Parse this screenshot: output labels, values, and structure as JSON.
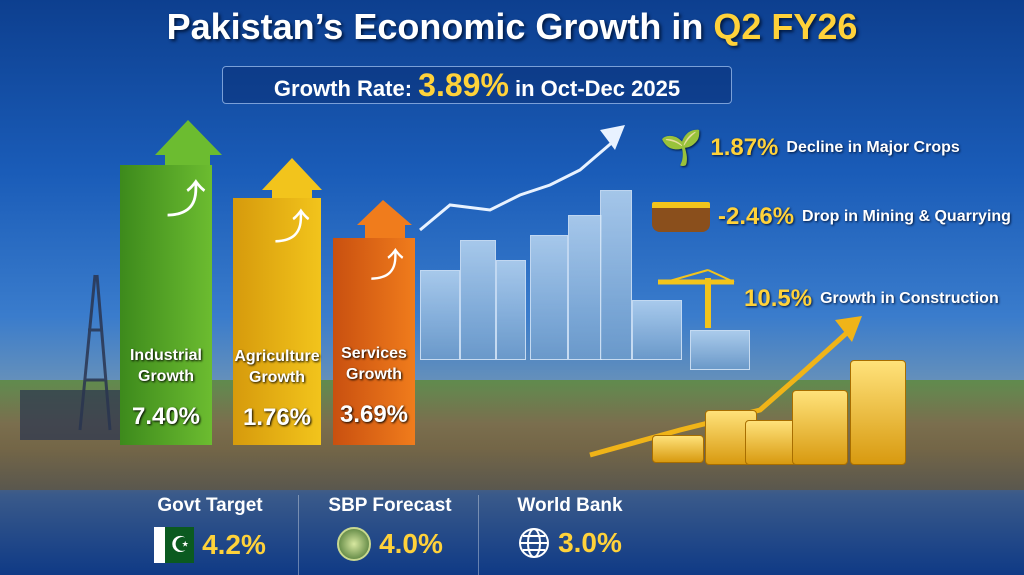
{
  "title": {
    "prefix": "Pakistan’s Economic Growth in ",
    "highlight": "Q2 FY26"
  },
  "subtitle": {
    "prefix": "Growth Rate: ",
    "value": "3.89%",
    "suffix": " in Oct-Dec 2025"
  },
  "sectors": [
    {
      "label_line1": "Industrial",
      "label_line2": "Growth",
      "value": "7.40%",
      "color": "#5aa22a"
    },
    {
      "label_line1": "Agriculture",
      "label_line2": "Growth",
      "value": "1.76%",
      "color": "#e8b414"
    },
    {
      "label_line1": "Services",
      "label_line2": "Growth",
      "value": "3.69%",
      "color": "#e0701a"
    }
  ],
  "highlights": [
    {
      "icon": "wheat-plant-icon",
      "value": "1.87%",
      "text": "Decline in Major Crops"
    },
    {
      "icon": "mining-cart-icon",
      "value": "-2.46%",
      "text": "Drop in Mining & Quarrying"
    },
    {
      "icon": "crane-icon",
      "value": "10.5%",
      "text": "Growth in Construction"
    }
  ],
  "forecasts": [
    {
      "label": "Govt Target",
      "value": "4.2%",
      "icon": "pakistan-flag-icon"
    },
    {
      "label": "SBP Forecast",
      "value": "4.0%",
      "icon": "sbp-emblem-icon"
    },
    {
      "label": "World Bank",
      "value": "3.0%",
      "icon": "globe-icon"
    }
  ]
}
